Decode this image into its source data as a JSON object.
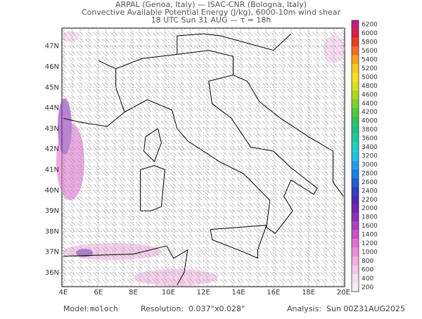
{
  "header": {
    "lines": [
      "ARPAL (Genoa, Italy)  —  ISAC-CNR (Bologna, Italy)",
      "Convective Available Potential Energy (J/kg), 6000-10m wind shear",
      "18 UTC Sun 31 AUG  —  τ = 18h"
    ]
  },
  "map": {
    "lat_labels": [
      "36N",
      "37N",
      "38N",
      "39N",
      "40N",
      "41N",
      "42N",
      "43N",
      "44N",
      "45N",
      "46N",
      "47N"
    ],
    "lon_labels": [
      "4E",
      "6E",
      "8E",
      "10E",
      "12E",
      "14E",
      "16E",
      "18E",
      "20E"
    ]
  },
  "colorbar": {
    "labels": [
      200,
      400,
      600,
      800,
      1000,
      1200,
      1400,
      1600,
      1800,
      2000,
      2200,
      2400,
      2600,
      2800,
      3000,
      3200,
      3400,
      3600,
      3800,
      4000,
      4200,
      4400,
      4600,
      4800,
      5000,
      5200,
      5400,
      5600,
      5800,
      6000,
      6200
    ],
    "colors": [
      "#f0f0f0",
      "#f8e0f0",
      "#f4c8e8",
      "#f0b0e0",
      "#e890d8",
      "#e070d0",
      "#d050c8",
      "#b040c0",
      "#9030b8",
      "#7028b0",
      "#5028b0",
      "#3040c0",
      "#2060d0",
      "#2080e0",
      "#20a0e8",
      "#20c0e0",
      "#20d0c0",
      "#20c8a0",
      "#20c080",
      "#30c060",
      "#50c840",
      "#80d030",
      "#b0d820",
      "#d8e020",
      "#f0e020",
      "#f8c820",
      "#f8a020",
      "#f07020",
      "#e84020",
      "#d82040",
      "#c02080"
    ]
  },
  "footer": {
    "model_label": "Model:",
    "model": "moloch",
    "resolution_label": "Resolution:",
    "resolution": "0.037°x0.028°",
    "analysis_label": "Analysis:",
    "analysis": "Sun 00Z31AUG2025"
  }
}
